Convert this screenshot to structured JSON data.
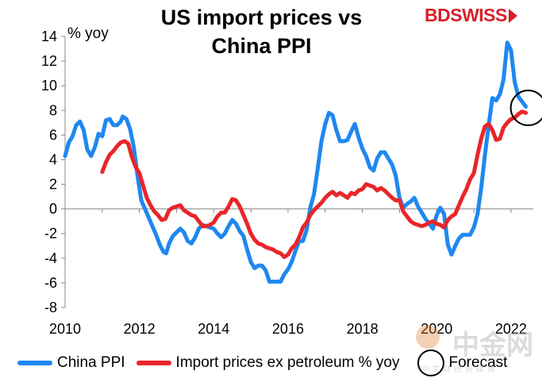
{
  "chart_data": {
    "type": "line",
    "title_line1": "US import prices vs",
    "title_line2": "China PPI",
    "ylabel": "% yoy",
    "xlim": [
      2010,
      2022.6
    ],
    "ylim": [
      -8,
      14
    ],
    "yticks": [
      "14",
      "12",
      "10",
      "8",
      "6",
      "4",
      "2",
      "0",
      "-2",
      "-4",
      "-6",
      "-8"
    ],
    "ytick_values": [
      14,
      12,
      10,
      8,
      6,
      4,
      2,
      0,
      -2,
      -4,
      -6,
      -8
    ],
    "xticks": [
      "2010",
      "2012",
      "2014",
      "2016",
      "2018",
      "2020",
      "2022"
    ],
    "xtick_values": [
      2010,
      2012,
      2014,
      2016,
      2018,
      2020,
      2022
    ],
    "legend_position": "bottom",
    "series": [
      {
        "name": "China PPI",
        "color": "#1e88f0",
        "points": [
          [
            2010.0,
            4.3
          ],
          [
            2010.1,
            5.4
          ],
          [
            2010.2,
            5.9
          ],
          [
            2010.3,
            6.8
          ],
          [
            2010.4,
            7.1
          ],
          [
            2010.5,
            6.4
          ],
          [
            2010.6,
            4.8
          ],
          [
            2010.7,
            4.3
          ],
          [
            2010.8,
            5.0
          ],
          [
            2010.9,
            6.1
          ],
          [
            2011.0,
            5.9
          ],
          [
            2011.1,
            7.2
          ],
          [
            2011.2,
            7.3
          ],
          [
            2011.3,
            6.8
          ],
          [
            2011.4,
            6.8
          ],
          [
            2011.5,
            7.1
          ],
          [
            2011.55,
            7.5
          ],
          [
            2011.65,
            7.3
          ],
          [
            2011.75,
            6.5
          ],
          [
            2011.85,
            5.0
          ],
          [
            2011.95,
            2.7
          ],
          [
            2012.05,
            0.7
          ],
          [
            2012.15,
            0.0
          ],
          [
            2012.25,
            -0.7
          ],
          [
            2012.35,
            -1.4
          ],
          [
            2012.45,
            -2.1
          ],
          [
            2012.55,
            -2.9
          ],
          [
            2012.65,
            -3.5
          ],
          [
            2012.72,
            -3.6
          ],
          [
            2012.8,
            -2.8
          ],
          [
            2012.9,
            -2.2
          ],
          [
            2013.0,
            -1.9
          ],
          [
            2013.1,
            -1.6
          ],
          [
            2013.2,
            -1.9
          ],
          [
            2013.3,
            -2.6
          ],
          [
            2013.4,
            -2.8
          ],
          [
            2013.5,
            -2.3
          ],
          [
            2013.6,
            -1.6
          ],
          [
            2013.7,
            -1.3
          ],
          [
            2013.8,
            -1.4
          ],
          [
            2013.9,
            -1.5
          ],
          [
            2014.0,
            -1.6
          ],
          [
            2014.1,
            -2.0
          ],
          [
            2014.2,
            -2.3
          ],
          [
            2014.3,
            -2.0
          ],
          [
            2014.4,
            -1.4
          ],
          [
            2014.5,
            -0.9
          ],
          [
            2014.6,
            -1.2
          ],
          [
            2014.7,
            -1.8
          ],
          [
            2014.8,
            -2.2
          ],
          [
            2014.9,
            -3.3
          ],
          [
            2015.0,
            -4.3
          ],
          [
            2015.1,
            -4.8
          ],
          [
            2015.2,
            -4.6
          ],
          [
            2015.3,
            -4.6
          ],
          [
            2015.4,
            -5.0
          ],
          [
            2015.5,
            -5.9
          ],
          [
            2015.6,
            -5.9
          ],
          [
            2015.7,
            -5.9
          ],
          [
            2015.8,
            -5.9
          ],
          [
            2015.9,
            -5.3
          ],
          [
            2016.0,
            -4.9
          ],
          [
            2016.1,
            -4.3
          ],
          [
            2016.2,
            -3.4
          ],
          [
            2016.3,
            -2.6
          ],
          [
            2016.4,
            -2.6
          ],
          [
            2016.5,
            -1.7
          ],
          [
            2016.6,
            0.1
          ],
          [
            2016.7,
            1.2
          ],
          [
            2016.8,
            3.3
          ],
          [
            2016.9,
            5.5
          ],
          [
            2017.0,
            6.9
          ],
          [
            2017.1,
            7.8
          ],
          [
            2017.2,
            7.6
          ],
          [
            2017.3,
            6.4
          ],
          [
            2017.4,
            5.5
          ],
          [
            2017.5,
            5.5
          ],
          [
            2017.6,
            5.6
          ],
          [
            2017.7,
            6.3
          ],
          [
            2017.8,
            6.9
          ],
          [
            2017.9,
            5.8
          ],
          [
            2018.0,
            4.9
          ],
          [
            2018.1,
            4.3
          ],
          [
            2018.2,
            3.4
          ],
          [
            2018.3,
            3.1
          ],
          [
            2018.4,
            4.1
          ],
          [
            2018.5,
            4.6
          ],
          [
            2018.6,
            4.6
          ],
          [
            2018.7,
            4.1
          ],
          [
            2018.8,
            3.6
          ],
          [
            2018.9,
            2.7
          ],
          [
            2019.0,
            0.9
          ],
          [
            2019.1,
            0.1
          ],
          [
            2019.2,
            0.4
          ],
          [
            2019.3,
            0.6
          ],
          [
            2019.4,
            0.9
          ],
          [
            2019.5,
            0.2
          ],
          [
            2019.6,
            -0.3
          ],
          [
            2019.7,
            -0.8
          ],
          [
            2019.8,
            -1.2
          ],
          [
            2019.9,
            -1.6
          ],
          [
            2020.0,
            -0.5
          ],
          [
            2020.1,
            0.1
          ],
          [
            2020.2,
            -0.4
          ],
          [
            2020.3,
            -2.9
          ],
          [
            2020.4,
            -3.7
          ],
          [
            2020.5,
            -3.0
          ],
          [
            2020.6,
            -2.4
          ],
          [
            2020.7,
            -2.1
          ],
          [
            2020.8,
            -2.1
          ],
          [
            2020.9,
            -2.1
          ],
          [
            2021.0,
            -1.5
          ],
          [
            2021.1,
            -0.4
          ],
          [
            2021.2,
            1.7
          ],
          [
            2021.3,
            4.4
          ],
          [
            2021.4,
            6.8
          ],
          [
            2021.5,
            9.0
          ],
          [
            2021.6,
            8.8
          ],
          [
            2021.7,
            9.3
          ],
          [
            2021.8,
            10.5
          ],
          [
            2021.9,
            13.5
          ],
          [
            2022.0,
            12.9
          ],
          [
            2022.1,
            10.3
          ],
          [
            2022.2,
            9.1
          ],
          [
            2022.3,
            8.7
          ],
          [
            2022.4,
            8.3
          ]
        ]
      },
      {
        "name": "Import prices ex petroleum % yoy",
        "color": "#e8262a",
        "points": [
          [
            2011.0,
            3.0
          ],
          [
            2011.1,
            3.8
          ],
          [
            2011.2,
            4.4
          ],
          [
            2011.3,
            4.7
          ],
          [
            2011.4,
            5.1
          ],
          [
            2011.5,
            5.4
          ],
          [
            2011.6,
            5.5
          ],
          [
            2011.7,
            5.3
          ],
          [
            2011.8,
            4.2
          ],
          [
            2011.9,
            3.4
          ],
          [
            2012.0,
            2.9
          ],
          [
            2012.1,
            1.9
          ],
          [
            2012.2,
            0.9
          ],
          [
            2012.3,
            0.3
          ],
          [
            2012.4,
            -0.2
          ],
          [
            2012.5,
            -0.5
          ],
          [
            2012.6,
            -0.9
          ],
          [
            2012.7,
            -0.8
          ],
          [
            2012.8,
            -0.1
          ],
          [
            2012.9,
            0.1
          ],
          [
            2013.0,
            0.2
          ],
          [
            2013.1,
            0.3
          ],
          [
            2013.2,
            -0.1
          ],
          [
            2013.3,
            -0.3
          ],
          [
            2013.4,
            -0.5
          ],
          [
            2013.5,
            -0.6
          ],
          [
            2013.6,
            -1.0
          ],
          [
            2013.7,
            -1.4
          ],
          [
            2013.8,
            -1.4
          ],
          [
            2013.9,
            -1.3
          ],
          [
            2014.0,
            -1.1
          ],
          [
            2014.1,
            -0.6
          ],
          [
            2014.2,
            -0.3
          ],
          [
            2014.3,
            -0.3
          ],
          [
            2014.4,
            0.2
          ],
          [
            2014.5,
            0.8
          ],
          [
            2014.6,
            0.7
          ],
          [
            2014.7,
            0.2
          ],
          [
            2014.8,
            -0.5
          ],
          [
            2014.9,
            -1.2
          ],
          [
            2015.0,
            -2.0
          ],
          [
            2015.1,
            -2.5
          ],
          [
            2015.2,
            -2.8
          ],
          [
            2015.3,
            -2.9
          ],
          [
            2015.4,
            -3.1
          ],
          [
            2015.5,
            -3.2
          ],
          [
            2015.6,
            -3.3
          ],
          [
            2015.7,
            -3.5
          ],
          [
            2015.8,
            -3.6
          ],
          [
            2015.9,
            -3.9
          ],
          [
            2016.0,
            -3.7
          ],
          [
            2016.1,
            -3.2
          ],
          [
            2016.2,
            -2.9
          ],
          [
            2016.3,
            -2.3
          ],
          [
            2016.4,
            -1.5
          ],
          [
            2016.5,
            -1.1
          ],
          [
            2016.6,
            -0.5
          ],
          [
            2016.7,
            -0.1
          ],
          [
            2016.8,
            0.2
          ],
          [
            2016.9,
            0.5
          ],
          [
            2017.0,
            0.9
          ],
          [
            2017.1,
            1.2
          ],
          [
            2017.2,
            1.4
          ],
          [
            2017.3,
            1.1
          ],
          [
            2017.4,
            1.3
          ],
          [
            2017.5,
            1.1
          ],
          [
            2017.6,
            0.9
          ],
          [
            2017.7,
            1.3
          ],
          [
            2017.8,
            1.2
          ],
          [
            2017.9,
            1.5
          ],
          [
            2018.0,
            1.6
          ],
          [
            2018.1,
            2.0
          ],
          [
            2018.2,
            1.9
          ],
          [
            2018.3,
            1.8
          ],
          [
            2018.4,
            1.5
          ],
          [
            2018.5,
            1.7
          ],
          [
            2018.6,
            1.5
          ],
          [
            2018.7,
            1.2
          ],
          [
            2018.8,
            0.9
          ],
          [
            2018.9,
            0.7
          ],
          [
            2019.0,
            0.7
          ],
          [
            2019.1,
            -0.2
          ],
          [
            2019.2,
            -0.6
          ],
          [
            2019.3,
            -1.0
          ],
          [
            2019.4,
            -1.2
          ],
          [
            2019.5,
            -1.3
          ],
          [
            2019.6,
            -1.4
          ],
          [
            2019.7,
            -1.3
          ],
          [
            2019.8,
            -1.1
          ],
          [
            2019.9,
            -1.0
          ],
          [
            2020.0,
            -1.2
          ],
          [
            2020.1,
            -1.3
          ],
          [
            2020.2,
            -1.5
          ],
          [
            2020.3,
            -0.9
          ],
          [
            2020.4,
            -0.6
          ],
          [
            2020.5,
            -0.4
          ],
          [
            2020.6,
            0.3
          ],
          [
            2020.7,
            1.0
          ],
          [
            2020.8,
            1.6
          ],
          [
            2020.9,
            2.4
          ],
          [
            2021.0,
            2.9
          ],
          [
            2021.1,
            4.4
          ],
          [
            2021.2,
            5.7
          ],
          [
            2021.3,
            6.7
          ],
          [
            2021.4,
            6.9
          ],
          [
            2021.5,
            6.4
          ],
          [
            2021.6,
            5.6
          ],
          [
            2021.7,
            5.7
          ],
          [
            2021.8,
            6.6
          ],
          [
            2021.9,
            7.0
          ],
          [
            2022.0,
            7.3
          ],
          [
            2022.1,
            7.4
          ],
          [
            2022.2,
            7.7
          ],
          [
            2022.3,
            7.9
          ],
          [
            2022.4,
            7.8
          ]
        ]
      }
    ],
    "annotation": "circle marks latest readings (forecast)"
  },
  "brand": {
    "bd": "BD",
    "swiss": "SWISS"
  },
  "legend": {
    "item1": "China PPI",
    "item2": "Import prices ex petroleum % yoy",
    "item3": "Forecast"
  },
  "watermark": {
    "text": "中金网",
    "sub": "中文财经新媒体"
  }
}
